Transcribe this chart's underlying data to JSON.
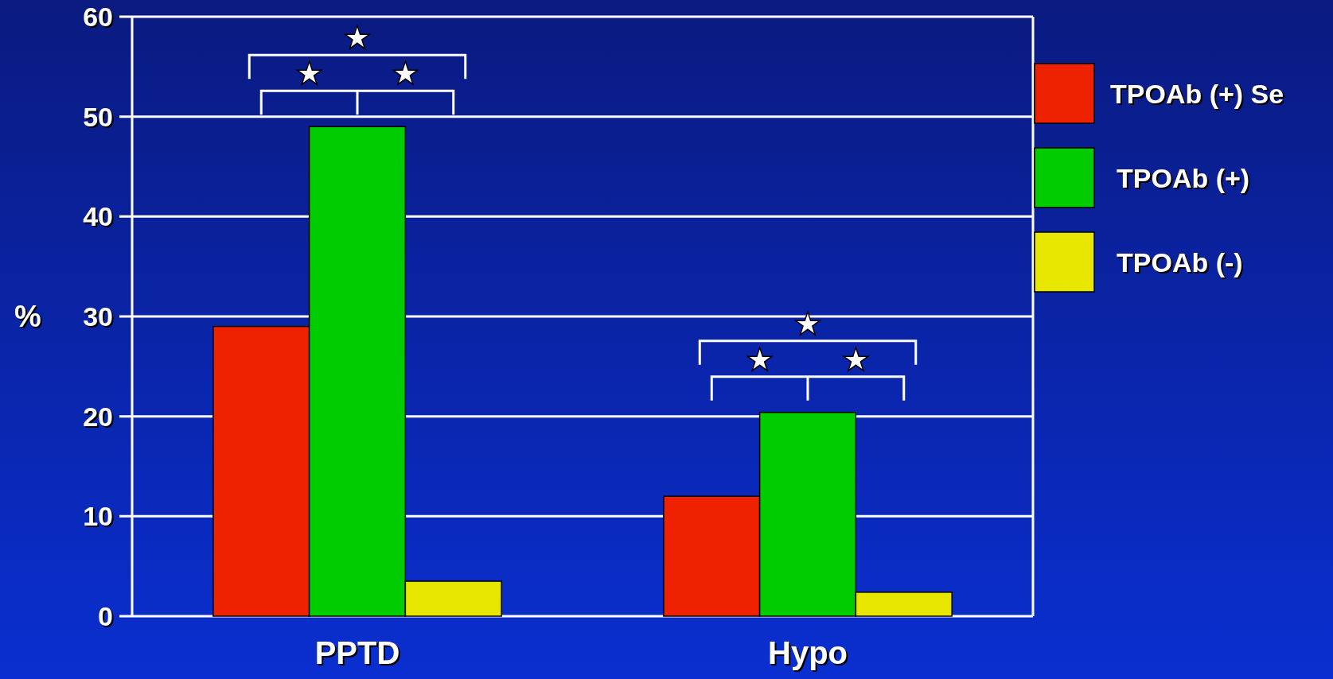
{
  "chart_data": {
    "type": "bar",
    "ylabel": "%",
    "categories": [
      "PPTD",
      "Hypo"
    ],
    "series": [
      {
        "name": "TPOAb (+) Se",
        "color": "#ee2200",
        "values": [
          29,
          12
        ]
      },
      {
        "name": "TPOAb (+)",
        "color": "#00cc00",
        "values": [
          49,
          20.4
        ]
      },
      {
        "name": "TPOAb (-)",
        "color": "#e6e600",
        "values": [
          3.5,
          2.4
        ]
      }
    ],
    "ylim": [
      0,
      60
    ],
    "yticks": [
      0,
      10,
      20,
      30,
      40,
      50,
      60
    ],
    "grid": "y",
    "legend": "right",
    "annotations": [
      "★",
      "★",
      "★",
      "★",
      "★",
      "★"
    ]
  }
}
